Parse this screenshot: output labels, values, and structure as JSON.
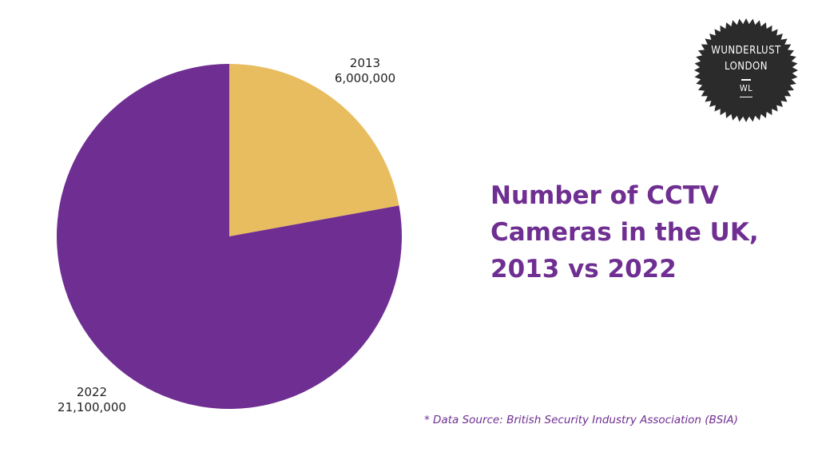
{
  "chart_data": {
    "type": "pie",
    "title": "Number of CCTV Cameras in the UK, 2013 vs 2022",
    "slices": [
      {
        "name": "2013",
        "value": 6000000,
        "value_label": "6,000,000",
        "color": "#e8bd60"
      },
      {
        "name": "2022",
        "value": 21100000,
        "value_label": "21,100,000",
        "color": "#6f2e91"
      }
    ],
    "start_angle_deg": 0,
    "direction": "clockwise",
    "legend": "none"
  },
  "title_lines": [
    "Number of CCTV",
    "Cameras in the UK,",
    "2013 vs 2022"
  ],
  "source": "* Data Source: British Security Industry Association (BSIA)",
  "logo": {
    "line1": "WUNDERLUST",
    "line2": "LONDON",
    "monogram": "WL",
    "color": "#2b2b2b"
  }
}
